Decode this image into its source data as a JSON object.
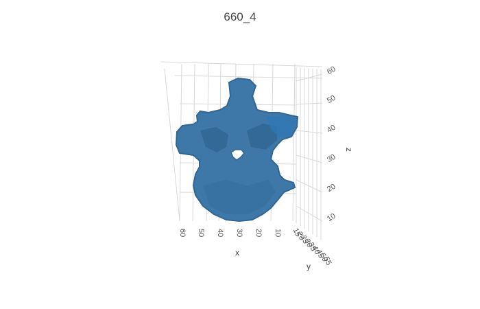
{
  "chart_data": {
    "type": "3d-mesh",
    "title": "660_4",
    "mesh_color": "#3d78a8",
    "axes": {
      "x": {
        "label": "x",
        "ticks": [
          60,
          50,
          40,
          30,
          20,
          10
        ]
      },
      "y": {
        "label": "y",
        "ticks": [
          15,
          20,
          25,
          30,
          35,
          40,
          45,
          50,
          55
        ]
      },
      "z": {
        "label": "z",
        "ticks": [
          10,
          20,
          30,
          40,
          50,
          60
        ]
      }
    },
    "background": "#ffffff",
    "grid": true
  }
}
